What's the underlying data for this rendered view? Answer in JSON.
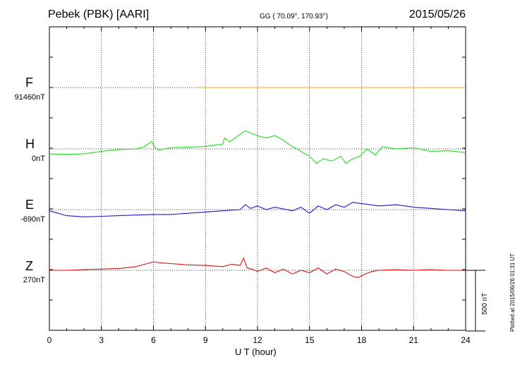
{
  "header": {
    "station": "Pebek (PBK)  [AARI]",
    "coords": "GG ( 70.09°, 170.93°)",
    "date": "2015/05/26"
  },
  "plotted_text": "Plotted at 2015/06/26 01:31  UT",
  "scale_bar": {
    "label": "500 nT",
    "value_nT": 500
  },
  "chart_data": {
    "type": "line",
    "xlabel": "U T (hour)",
    "xlim": [
      0,
      24
    ],
    "xticks": [
      0,
      3,
      6,
      9,
      12,
      15,
      18,
      21,
      24
    ],
    "grid": true,
    "series": [
      {
        "name": "F",
        "baseline_label": "91460nT",
        "color": "#f5a800",
        "x": [
          8.5,
          24
        ],
        "y": [
          0,
          0
        ]
      },
      {
        "name": "H",
        "baseline_label": "0nT",
        "color": "#22dd22",
        "x": [
          0,
          1,
          2,
          3,
          4,
          5,
          5.5,
          5.9,
          6.1,
          6.3,
          7,
          8,
          9,
          9.5,
          10,
          10.1,
          10.4,
          11,
          11.3,
          11.6,
          12,
          12.5,
          13,
          13.4,
          14,
          14.3,
          14.6,
          15,
          15.4,
          15.8,
          16.3,
          16.8,
          17.1,
          17.5,
          17.9,
          18.3,
          18.8,
          19.2,
          20,
          21,
          22,
          23,
          24
        ],
        "y": [
          -40,
          -45,
          -40,
          -20,
          -5,
          0,
          20,
          60,
          10,
          -10,
          10,
          15,
          20,
          30,
          40,
          90,
          60,
          120,
          150,
          130,
          110,
          90,
          110,
          80,
          20,
          0,
          -30,
          -60,
          -120,
          -80,
          -100,
          -60,
          -120,
          -80,
          -60,
          0,
          -50,
          20,
          0,
          10,
          -20,
          -15,
          -30
        ]
      },
      {
        "name": "E",
        "baseline_label": "-690nT",
        "color": "#1a1acc",
        "x": [
          0,
          1,
          2,
          3,
          4,
          5,
          6,
          7,
          8,
          9,
          10,
          11,
          11.3,
          11.6,
          12,
          12.5,
          13,
          14,
          14.5,
          15,
          15.5,
          16,
          16.5,
          17,
          17.5,
          18,
          18.5,
          19,
          20,
          21,
          22,
          23,
          24
        ],
        "y": [
          -10,
          -50,
          -60,
          -55,
          -50,
          -45,
          -40,
          -40,
          -30,
          -20,
          -10,
          0,
          40,
          10,
          30,
          0,
          20,
          -10,
          20,
          -30,
          30,
          0,
          40,
          20,
          60,
          50,
          40,
          30,
          40,
          20,
          10,
          0,
          -10
        ]
      },
      {
        "name": "Z",
        "baseline_label": "270nT",
        "color": "#dd1111",
        "x": [
          0,
          1,
          2,
          3,
          4,
          5,
          5.5,
          6,
          6.5,
          7,
          8,
          9,
          10,
          10.5,
          11,
          11.2,
          11.4,
          11.7,
          12,
          12.5,
          13,
          13.5,
          14,
          14.5,
          15,
          15.5,
          16,
          16.5,
          17,
          17.5,
          17.8,
          18.2,
          18.6,
          19,
          20,
          21,
          22,
          23,
          24
        ],
        "y": [
          0,
          0,
          5,
          10,
          15,
          30,
          50,
          70,
          60,
          55,
          45,
          40,
          30,
          50,
          40,
          100,
          20,
          10,
          -10,
          20,
          -20,
          10,
          -30,
          0,
          -20,
          20,
          -30,
          10,
          -10,
          -50,
          -60,
          -30,
          -10,
          0,
          5,
          0,
          5,
          0,
          0
        ]
      }
    ]
  }
}
